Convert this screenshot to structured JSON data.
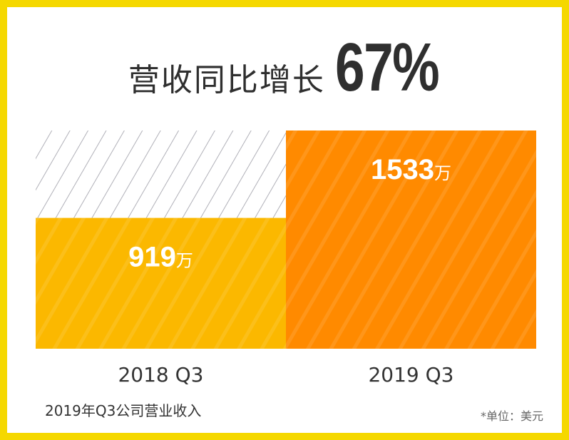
{
  "headline": {
    "text": "营收同比增长",
    "percent": "67%"
  },
  "footnote": {
    "subject": "2019年Q3公司营业收入",
    "unit": "*单位：美元"
  },
  "colors": {
    "border": "#f5d800",
    "bar_2018": "#fbb800",
    "bar_2019": "#ff8a00",
    "hatch": "#b0b0b8"
  },
  "chart_data": {
    "type": "bar",
    "categories": [
      "2018 Q3",
      "2019 Q3"
    ],
    "values": [
      919,
      1533
    ],
    "data_labels": [
      {
        "number": "919",
        "unit": "万"
      },
      {
        "number": "1533",
        "unit": "万"
      }
    ],
    "ylim": [
      0,
      1533
    ],
    "title": "",
    "xlabel": "",
    "ylabel": "",
    "grid": false,
    "legend": "none",
    "growth_percent": 67
  }
}
